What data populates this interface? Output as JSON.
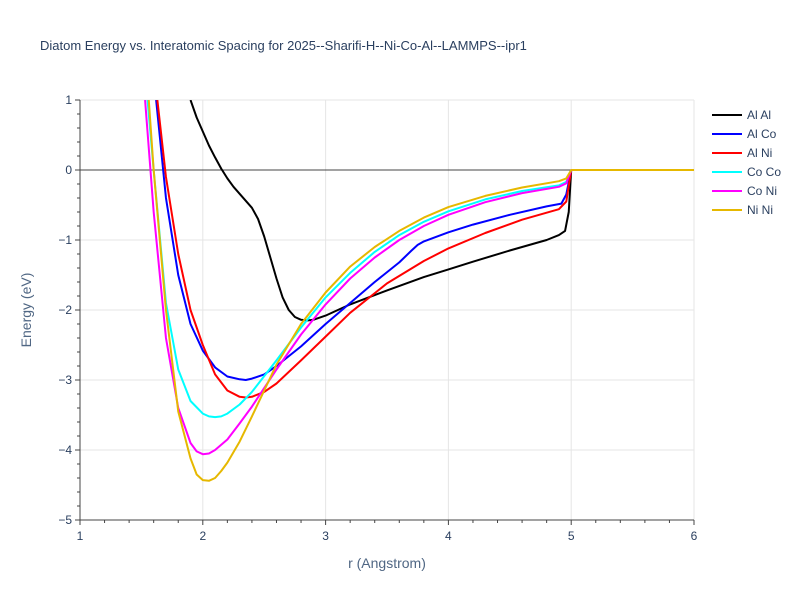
{
  "chart_data": {
    "type": "line",
    "title": "Diatom Energy vs. Interatomic Spacing for 2025--Sharifi-H--Ni-Co-Al--LAMMPS--ipr1",
    "xlabel": "r (Angstrom)",
    "ylabel": "Energy (eV)",
    "xlim": [
      1,
      6
    ],
    "ylim": [
      -5,
      1
    ],
    "xticks": [
      1,
      2,
      3,
      4,
      5,
      6
    ],
    "yticks": [
      -5,
      -4,
      -3,
      -2,
      -1,
      0,
      1
    ],
    "ytick_labels": [
      "−5",
      "−4",
      "−3",
      "−2",
      "−1",
      "0",
      "1"
    ],
    "grid": true,
    "legend_position": "top-right",
    "series": [
      {
        "name": "Al Al",
        "color": "#000000",
        "x": [
          1.9,
          1.95,
          2.0,
          2.05,
          2.1,
          2.15,
          2.2,
          2.25,
          2.3,
          2.35,
          2.4,
          2.45,
          2.5,
          2.55,
          2.6,
          2.65,
          2.7,
          2.75,
          2.8,
          2.85,
          2.9,
          3.0,
          3.2,
          3.5,
          3.8,
          4.0,
          4.2,
          4.5,
          4.8,
          4.9,
          4.95,
          4.98,
          5.0,
          6.0
        ],
        "y": [
          1.0,
          0.75,
          0.55,
          0.35,
          0.18,
          0.02,
          -0.12,
          -0.24,
          -0.34,
          -0.44,
          -0.54,
          -0.7,
          -0.95,
          -1.25,
          -1.55,
          -1.82,
          -2.0,
          -2.1,
          -2.14,
          -2.15,
          -2.14,
          -2.08,
          -1.92,
          -1.72,
          -1.53,
          -1.42,
          -1.31,
          -1.15,
          -1.0,
          -0.93,
          -0.87,
          -0.6,
          0.0,
          0.0
        ]
      },
      {
        "name": "Al Co",
        "color": "#0000ff",
        "x": [
          1.62,
          1.7,
          1.8,
          1.9,
          2.0,
          2.1,
          2.2,
          2.3,
          2.35,
          2.4,
          2.5,
          2.6,
          2.8,
          3.0,
          3.2,
          3.4,
          3.6,
          3.7,
          3.75,
          3.8,
          4.0,
          4.2,
          4.5,
          4.8,
          4.92,
          4.96,
          5.0,
          6.0
        ],
        "y": [
          1.0,
          -0.4,
          -1.5,
          -2.2,
          -2.58,
          -2.82,
          -2.95,
          -2.99,
          -3.0,
          -2.98,
          -2.92,
          -2.8,
          -2.52,
          -2.2,
          -1.9,
          -1.6,
          -1.32,
          -1.15,
          -1.07,
          -1.02,
          -0.89,
          -0.78,
          -0.64,
          -0.52,
          -0.48,
          -0.35,
          0.0,
          0.0
        ]
      },
      {
        "name": "Al Ni",
        "color": "#ff0000",
        "x": [
          1.63,
          1.7,
          1.8,
          1.9,
          2.0,
          2.1,
          2.2,
          2.3,
          2.35,
          2.4,
          2.5,
          2.6,
          2.8,
          3.0,
          3.2,
          3.5,
          3.8,
          4.0,
          4.3,
          4.6,
          4.9,
          4.96,
          5.0,
          6.0
        ],
        "y": [
          1.0,
          -0.1,
          -1.2,
          -2.0,
          -2.5,
          -2.92,
          -3.15,
          -3.24,
          -3.25,
          -3.24,
          -3.17,
          -3.05,
          -2.72,
          -2.38,
          -2.04,
          -1.62,
          -1.3,
          -1.12,
          -0.9,
          -0.71,
          -0.56,
          -0.45,
          0.0,
          0.0
        ]
      },
      {
        "name": "Co Co",
        "color": "#00ffff",
        "x": [
          1.55,
          1.6,
          1.7,
          1.8,
          1.9,
          2.0,
          2.05,
          2.1,
          2.15,
          2.2,
          2.3,
          2.4,
          2.6,
          2.8,
          3.0,
          3.2,
          3.4,
          3.6,
          3.8,
          4.0,
          4.3,
          4.6,
          4.9,
          4.96,
          5.0,
          6.0
        ],
        "y": [
          1.0,
          0.0,
          -1.9,
          -2.85,
          -3.3,
          -3.48,
          -3.52,
          -3.53,
          -3.52,
          -3.48,
          -3.35,
          -3.17,
          -2.72,
          -2.25,
          -1.82,
          -1.47,
          -1.17,
          -0.93,
          -0.74,
          -0.59,
          -0.42,
          -0.3,
          -0.22,
          -0.17,
          0.0,
          0.0
        ]
      },
      {
        "name": "Co Ni",
        "color": "#ff00ff",
        "x": [
          1.53,
          1.6,
          1.7,
          1.8,
          1.9,
          1.95,
          2.0,
          2.05,
          2.1,
          2.2,
          2.3,
          2.4,
          2.6,
          2.8,
          3.0,
          3.2,
          3.4,
          3.6,
          3.8,
          4.0,
          4.3,
          4.6,
          4.9,
          4.96,
          5.0,
          6.0
        ],
        "y": [
          1.0,
          -0.6,
          -2.4,
          -3.4,
          -3.9,
          -4.02,
          -4.06,
          -4.05,
          -4.0,
          -3.85,
          -3.62,
          -3.38,
          -2.85,
          -2.35,
          -1.92,
          -1.55,
          -1.25,
          -1.0,
          -0.8,
          -0.64,
          -0.46,
          -0.33,
          -0.24,
          -0.19,
          0.0,
          0.0
        ]
      },
      {
        "name": "Ni Ni",
        "color": "#e6b800",
        "x": [
          1.56,
          1.6,
          1.7,
          1.8,
          1.9,
          1.95,
          2.0,
          2.05,
          2.1,
          2.15,
          2.2,
          2.3,
          2.4,
          2.6,
          2.8,
          3.0,
          3.2,
          3.4,
          3.6,
          3.8,
          4.0,
          4.3,
          4.6,
          4.9,
          4.96,
          5.0,
          6.0
        ],
        "y": [
          1.0,
          0.0,
          -2.0,
          -3.45,
          -4.12,
          -4.35,
          -4.43,
          -4.44,
          -4.4,
          -4.3,
          -4.18,
          -3.88,
          -3.52,
          -2.78,
          -2.2,
          -1.75,
          -1.38,
          -1.1,
          -0.87,
          -0.68,
          -0.53,
          -0.37,
          -0.25,
          -0.16,
          -0.12,
          0.0,
          0.0
        ]
      }
    ]
  }
}
